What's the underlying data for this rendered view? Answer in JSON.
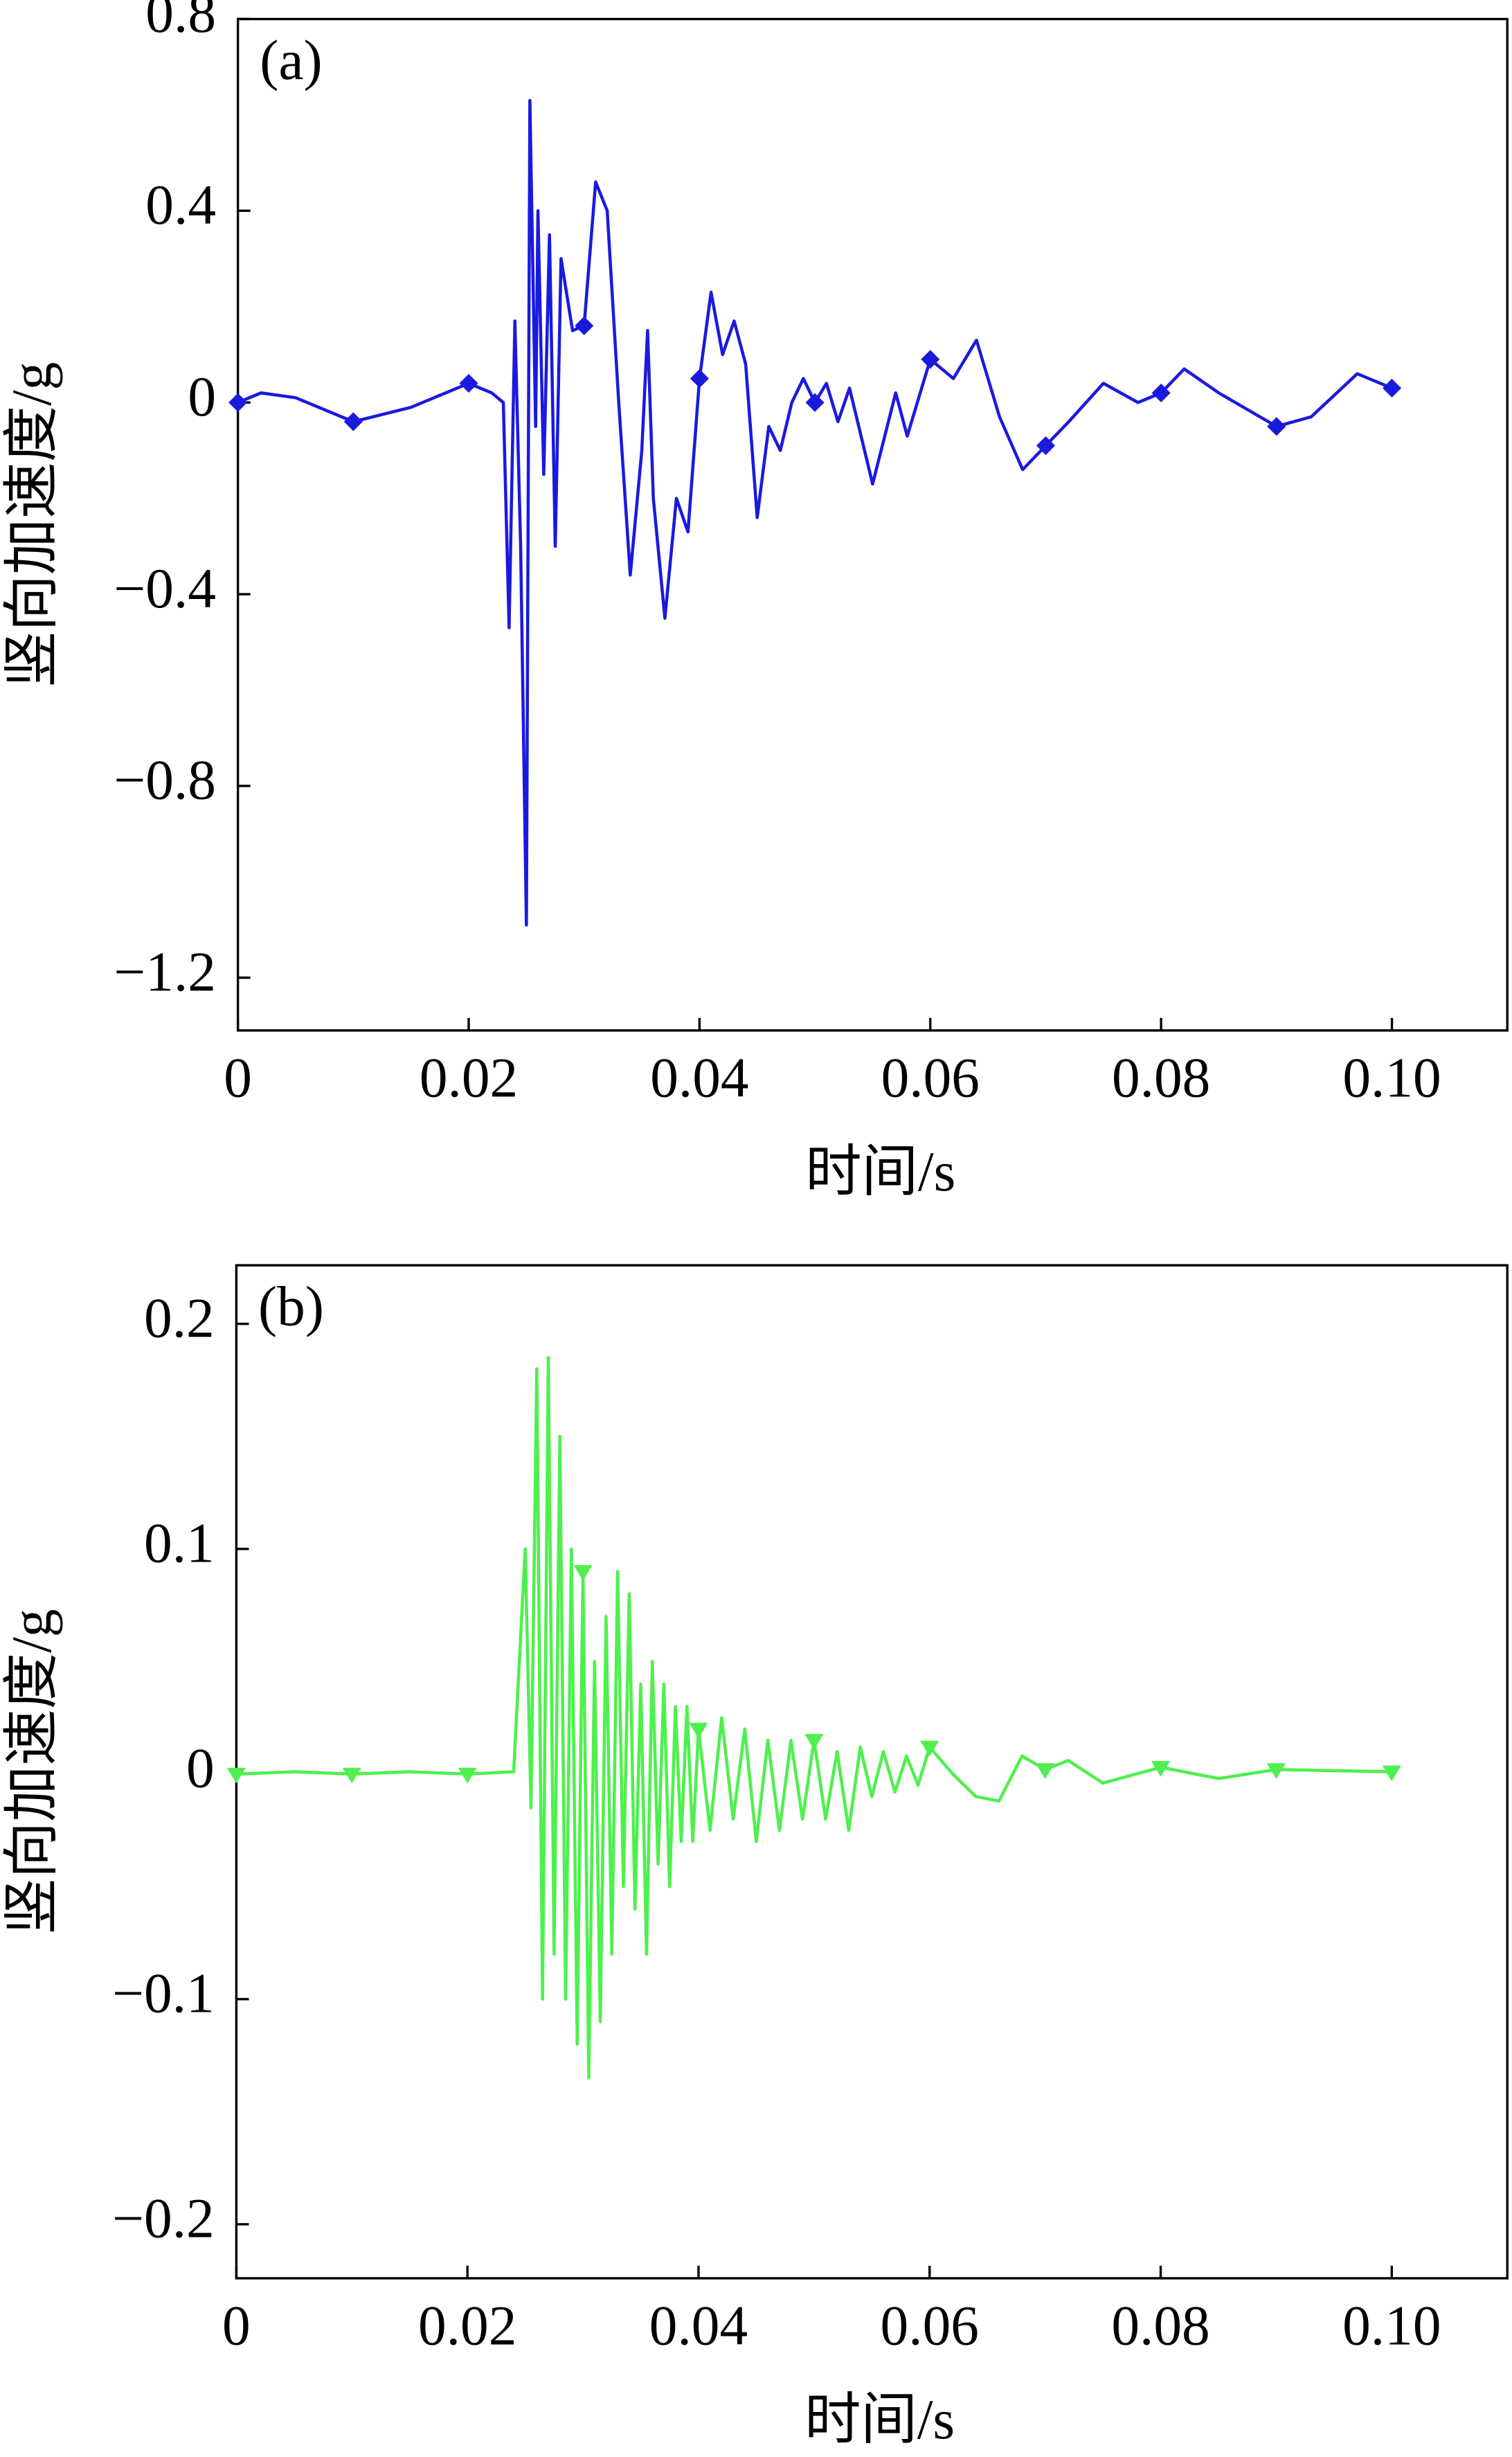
{
  "chart_data": [
    {
      "type": "line",
      "annotation": "(a)",
      "xlabel": "时间/s",
      "ylabel": "竖向加速度/g",
      "xlim": [
        0,
        0.11
      ],
      "ylim": [
        -1.31,
        0.8
      ],
      "xticks": [
        0,
        0.02,
        0.04,
        0.06,
        0.08,
        {
          "value": 0.1,
          "label": "0.10"
        }
      ],
      "yticks": [
        0.8,
        0.4,
        0,
        {
          "value": -0.4,
          "label": "−0.4"
        },
        {
          "value": -0.8,
          "label": "−0.8"
        },
        {
          "value": -1.2,
          "label": "−1.2"
        }
      ],
      "marker": "diamond",
      "x": [
        0,
        0.002,
        0.005,
        0.01,
        0.015,
        0.02,
        0.022,
        0.023,
        0.0235,
        0.024,
        0.0245,
        0.025,
        0.0253,
        0.0258,
        0.026,
        0.0265,
        0.027,
        0.0275,
        0.028,
        0.029,
        0.03,
        0.031,
        0.032,
        0.033,
        0.034,
        0.035,
        0.0355,
        0.036,
        0.037,
        0.038,
        0.039,
        0.04,
        0.041,
        0.042,
        0.043,
        0.044,
        0.045,
        0.046,
        0.047,
        0.048,
        0.049,
        0.05,
        0.051,
        0.052,
        0.053,
        0.055,
        0.057,
        0.058,
        0.06,
        0.062,
        0.064,
        0.066,
        0.068,
        0.07,
        0.072,
        0.075,
        0.078,
        0.08,
        0.082,
        0.085,
        0.09,
        0.093,
        0.097,
        0.1
      ],
      "series": [
        {
          "color": "#1a1adf",
          "values": [
            0,
            0.02,
            0.01,
            -0.04,
            -0.01,
            0.04,
            0.02,
            0,
            -0.47,
            0.17,
            -0.3,
            -1.09,
            0.63,
            -0.05,
            0.4,
            -0.15,
            0.35,
            -0.3,
            0.3,
            0.15,
            0.16,
            0.46,
            0.4,
            0,
            -0.36,
            -0.1,
            0.15,
            -0.2,
            -0.45,
            -0.2,
            -0.27,
            0.05,
            0.23,
            0.1,
            0.17,
            0.08,
            -0.24,
            -0.05,
            -0.1,
            0,
            0.05,
            0,
            0.04,
            -0.04,
            0.03,
            -0.17,
            0.02,
            -0.07,
            0.09,
            0.05,
            0.13,
            -0.03,
            -0.14,
            -0.09,
            -0.04,
            0.04,
            0,
            0.02,
            0.07,
            0.02,
            -0.05,
            -0.03,
            0.06,
            0.03
          ]
        }
      ]
    },
    {
      "type": "line",
      "annotation": "(b)",
      "xlabel": "时间/s",
      "ylabel": "竖向加速度/g",
      "xlim": [
        0,
        0.11
      ],
      "ylim": [
        -0.224,
        0.226
      ],
      "xticks": [
        0,
        0.02,
        0.04,
        0.06,
        0.08,
        {
          "value": 0.1,
          "label": "0.10"
        }
      ],
      "yticks": [
        0.2,
        0.1,
        0,
        {
          "value": -0.1,
          "label": "−0.1"
        },
        {
          "value": -0.2,
          "label": "−0.2"
        }
      ],
      "marker": "triangle-down",
      "x": [
        0,
        0.005,
        0.01,
        0.015,
        0.02,
        0.024,
        0.025,
        0.0255,
        0.026,
        0.0265,
        0.027,
        0.0275,
        0.028,
        0.0285,
        0.029,
        0.0295,
        0.03,
        0.0305,
        0.031,
        0.0315,
        0.032,
        0.0325,
        0.033,
        0.0335,
        0.034,
        0.0345,
        0.035,
        0.0355,
        0.036,
        0.0365,
        0.037,
        0.0375,
        0.038,
        0.0385,
        0.039,
        0.0395,
        0.04,
        0.041,
        0.042,
        0.043,
        0.044,
        0.045,
        0.046,
        0.047,
        0.048,
        0.049,
        0.05,
        0.051,
        0.052,
        0.053,
        0.054,
        0.055,
        0.056,
        0.057,
        0.058,
        0.059,
        0.06,
        0.062,
        0.064,
        0.066,
        0.068,
        0.07,
        0.072,
        0.075,
        0.08,
        0.085,
        0.09,
        0.1
      ],
      "series": [
        {
          "color": "#4ef04e",
          "values": [
            0,
            0.001,
            0,
            0.001,
            0,
            0.001,
            0.1,
            -0.015,
            0.18,
            -0.1,
            0.185,
            -0.08,
            0.15,
            -0.1,
            0.1,
            -0.12,
            0.09,
            -0.135,
            0.05,
            -0.11,
            0.07,
            -0.08,
            0.09,
            -0.05,
            0.08,
            -0.06,
            0.04,
            -0.08,
            0.05,
            -0.04,
            0.04,
            -0.05,
            0.03,
            -0.03,
            0.03,
            -0.03,
            0.02,
            -0.025,
            0.025,
            -0.02,
            0.02,
            -0.03,
            0.015,
            -0.025,
            0.015,
            -0.02,
            0.015,
            -0.02,
            0.01,
            -0.025,
            0.012,
            -0.01,
            0.01,
            -0.008,
            0.008,
            -0.005,
            0.012,
            0,
            -0.01,
            -0.012,
            0.008,
            0.002,
            0.006,
            -0.004,
            0.003,
            -0.002,
            0.002,
            0.001
          ]
        }
      ]
    }
  ]
}
